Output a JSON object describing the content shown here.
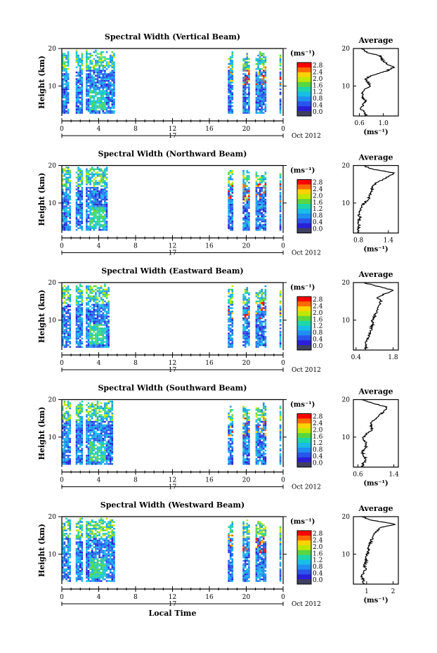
{
  "date_label": "Oct 2012",
  "x_axis_label": "Local Time",
  "day_label": "17",
  "colorbar": {
    "unit": "(ms⁻¹)",
    "ticks": [
      "2.8",
      "2.4",
      "2.0",
      "1.6",
      "1.2",
      "0.8",
      "0.4",
      "0.0"
    ],
    "colors": [
      "#ff0000",
      "#ff6a00",
      "#ffd200",
      "#bfe800",
      "#59d640",
      "#1fd6a8",
      "#19bde6",
      "#1f8ff0",
      "#2a55ea",
      "#2a1fd6",
      "#3f3f5f"
    ]
  },
  "chart_data": [
    {
      "type": "heatmap",
      "title": "Spectral Width (Vertical Beam)",
      "xlabel": "",
      "ylabel": "Height (km)",
      "xlim": [
        0,
        24
      ],
      "ylim": [
        2,
        20
      ],
      "xticks": [
        "0",
        "4",
        "8",
        "12",
        "16",
        "20",
        "0"
      ],
      "yticks": [
        "20",
        "10"
      ],
      "data_intervals_hours": [
        [
          0,
          0.8
        ],
        [
          1.5,
          2.3
        ],
        [
          2.6,
          5.7
        ],
        [
          18.0,
          18.5
        ],
        [
          19.6,
          20.4
        ],
        [
          21.0,
          22.1
        ],
        [
          23.6,
          23.8
        ]
      ],
      "profile": {
        "type": "line",
        "title": "Average",
        "xlabel": "(ms⁻¹)",
        "ylabel": "",
        "xticks": [
          "0.6",
          "1.0"
        ],
        "xlim": [
          0.5,
          1.25
        ],
        "yticks": [
          "20",
          "10"
        ],
        "ylim": [
          2,
          20
        ],
        "height_km": [
          2,
          3,
          4,
          5,
          6,
          7,
          8,
          9,
          10,
          11,
          12,
          13,
          14,
          15,
          16,
          17,
          18,
          19,
          20
        ],
        "width_ms": [
          0.72,
          0.68,
          0.63,
          0.66,
          0.7,
          0.66,
          0.64,
          0.68,
          0.78,
          0.74,
          0.7,
          0.85,
          1.05,
          1.18,
          1.05,
          0.98,
          0.95,
          0.72,
          0.65
        ]
      }
    },
    {
      "type": "heatmap",
      "title": "Spectral Width (Northward Beam)",
      "xlabel": "",
      "ylabel": "Height (km)",
      "xlim": [
        0,
        24
      ],
      "ylim": [
        2,
        20
      ],
      "xticks": [
        "0",
        "4",
        "8",
        "12",
        "16",
        "20",
        "0"
      ],
      "yticks": [
        "20",
        "10"
      ],
      "data_intervals_hours": [
        [
          0,
          1.0
        ],
        [
          1.5,
          2.2
        ],
        [
          2.6,
          5.0
        ],
        [
          18.0,
          18.5
        ],
        [
          19.6,
          20.4
        ],
        [
          21.0,
          22.1
        ],
        [
          23.6,
          23.8
        ]
      ],
      "profile": {
        "type": "line",
        "title": "Average",
        "xlabel": "(ms⁻¹)",
        "ylabel": "",
        "xticks": [
          "0.8",
          "1.4"
        ],
        "xlim": [
          0.7,
          1.6
        ],
        "yticks": [
          "20",
          "10"
        ],
        "ylim": [
          2,
          20
        ],
        "height_km": [
          2,
          3,
          4,
          5,
          6,
          7,
          8,
          9,
          10,
          11,
          12,
          13,
          14,
          15,
          16,
          17,
          18,
          19,
          20
        ],
        "width_ms": [
          0.8,
          0.78,
          0.82,
          0.79,
          0.84,
          0.8,
          0.83,
          0.86,
          0.92,
          1.0,
          1.02,
          1.05,
          1.08,
          1.12,
          1.25,
          1.4,
          1.52,
          1.1,
          0.9
        ]
      }
    },
    {
      "type": "heatmap",
      "title": "Spectral Width (Eastward Beam)",
      "xlabel": "",
      "ylabel": "Height (km)",
      "xlim": [
        0,
        24
      ],
      "ylim": [
        2,
        20
      ],
      "xticks": [
        "0",
        "4",
        "8",
        "12",
        "16",
        "20",
        "0"
      ],
      "yticks": [
        "20",
        "10"
      ],
      "data_intervals_hours": [
        [
          0,
          1.0
        ],
        [
          1.5,
          2.2
        ],
        [
          2.6,
          5.2
        ],
        [
          18.0,
          18.5
        ],
        [
          19.6,
          20.4
        ],
        [
          21.0,
          22.1
        ],
        [
          23.6,
          23.8
        ]
      ],
      "profile": {
        "type": "line",
        "title": "Average",
        "xlabel": "",
        "ylabel": "",
        "xticks": [
          "0.4",
          "1.8"
        ],
        "xlim": [
          0.3,
          2.0
        ],
        "yticks": [
          "20",
          "10"
        ],
        "ylim": [
          2,
          20
        ],
        "height_km": [
          2,
          3,
          4,
          5,
          6,
          7,
          8,
          9,
          10,
          11,
          12,
          13,
          14,
          15,
          16,
          17,
          18,
          19,
          20
        ],
        "width_ms": [
          0.75,
          0.8,
          0.78,
          0.85,
          0.9,
          0.95,
          0.98,
          1.05,
          1.02,
          1.1,
          1.15,
          1.2,
          1.3,
          1.35,
          1.2,
          1.5,
          1.8,
          1.2,
          0.7
        ]
      }
    },
    {
      "type": "heatmap",
      "title": "Spectral Width (Southward Beam)",
      "xlabel": "",
      "ylabel": "Height (km)",
      "xlim": [
        0,
        24
      ],
      "ylim": [
        2,
        20
      ],
      "xticks": [
        "0",
        "4",
        "8",
        "12",
        "16",
        "20",
        "0"
      ],
      "yticks": [
        "20",
        "10"
      ],
      "data_intervals_hours": [
        [
          0,
          1.0
        ],
        [
          1.5,
          2.2
        ],
        [
          2.6,
          5.5
        ],
        [
          18.0,
          18.5
        ],
        [
          19.6,
          20.4
        ],
        [
          21.0,
          22.1
        ],
        [
          23.6,
          23.8
        ]
      ],
      "profile": {
        "type": "line",
        "title": "Average",
        "xlabel": "(ms⁻¹)",
        "ylabel": "",
        "xticks": [
          "0.6",
          "1.4"
        ],
        "xlim": [
          0.5,
          1.5
        ],
        "yticks": [
          "20",
          "10"
        ],
        "ylim": [
          2,
          20
        ],
        "height_km": [
          2,
          3,
          4,
          5,
          6,
          7,
          8,
          9,
          10,
          11,
          12,
          13,
          14,
          15,
          16,
          17,
          18,
          19,
          20
        ],
        "width_ms": [
          0.68,
          0.72,
          0.78,
          0.74,
          0.7,
          0.76,
          0.8,
          0.75,
          0.72,
          0.8,
          0.92,
          0.88,
          0.9,
          1.0,
          1.1,
          1.2,
          1.25,
          0.95,
          0.7
        ]
      }
    },
    {
      "type": "heatmap",
      "title": "Spectral Width (Westward Beam)",
      "xlabel": "Local Time",
      "ylabel": "Height (km)",
      "xlim": [
        0,
        24
      ],
      "ylim": [
        2,
        20
      ],
      "xticks": [
        "0",
        "4",
        "8",
        "12",
        "16",
        "20",
        "0"
      ],
      "yticks": [
        "20",
        "10"
      ],
      "data_intervals_hours": [
        [
          0,
          1.0
        ],
        [
          1.5,
          2.2
        ],
        [
          2.6,
          5.7
        ],
        [
          18.0,
          18.5
        ],
        [
          19.6,
          20.4
        ],
        [
          21.0,
          22.1
        ],
        [
          23.6,
          23.8
        ]
      ],
      "profile": {
        "type": "line",
        "title": "Average",
        "xlabel": "(ms⁻¹)",
        "ylabel": "",
        "xticks": [
          "1",
          "2"
        ],
        "xlim": [
          0.5,
          2.2
        ],
        "yticks": [
          "20",
          "10"
        ],
        "ylim": [
          2,
          20
        ],
        "height_km": [
          2,
          3,
          4,
          5,
          6,
          7,
          8,
          9,
          10,
          11,
          12,
          13,
          14,
          15,
          16,
          17,
          18,
          19,
          20
        ],
        "width_ms": [
          0.85,
          0.88,
          0.82,
          0.9,
          0.95,
          0.92,
          0.98,
          1.0,
          1.02,
          1.05,
          1.1,
          1.15,
          1.2,
          1.25,
          1.35,
          1.5,
          2.1,
          1.2,
          0.8
        ]
      }
    }
  ]
}
